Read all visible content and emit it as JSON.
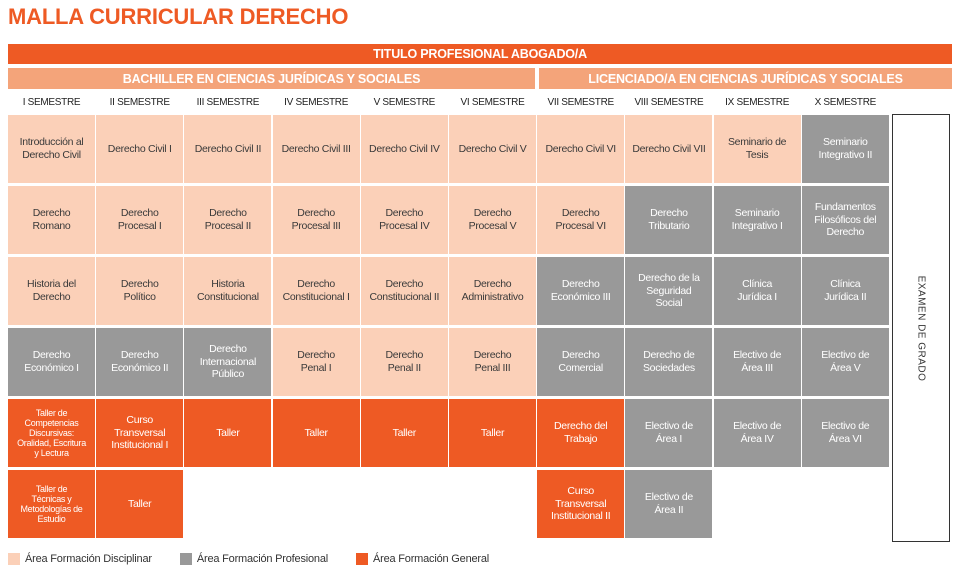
{
  "title": "MALLA CURRICULAR DERECHO",
  "degree_banner": "TITULO PROFESIONAL ABOGADO/A",
  "sub_banners": {
    "bachiller": "BACHILLER EN CIENCIAS JURÍDICAS Y SOCIALES",
    "licenciado": "LICENCIADO/A EN CIENCIAS JURÍDICAS Y SOCIALES"
  },
  "semesters": [
    "I SEMESTRE",
    "II SEMESTRE",
    "III SEMESTRE",
    "IV SEMESTRE",
    "V SEMESTRE",
    "VI SEMESTRE",
    "VII SEMESTRE",
    "VIII SEMESTRE",
    "IX SEMESTRE",
    "X SEMESTRE"
  ],
  "colors": {
    "disciplinar": "#fbd0b8",
    "profesional": "#999999",
    "general": "#ee5a24",
    "banner": "#ee5a24",
    "sub_banner": "#f4a47a"
  },
  "courses": [
    [
      {
        "name": "Introducción al\nDerecho Civil",
        "area": "disciplinar"
      },
      {
        "name": "Derecho\nRomano",
        "area": "disciplinar"
      },
      {
        "name": "Historia del\nDerecho",
        "area": "disciplinar"
      },
      {
        "name": "Derecho\nEconómico I",
        "area": "profesional"
      },
      {
        "name": "Taller de\nCompetencias\nDiscursivas:\nOralidad, Escritura\ny Lectura",
        "area": "general"
      },
      {
        "name": "Taller de\nTécnicas y\nMetodologías de\nEstudio",
        "area": "general"
      }
    ],
    [
      {
        "name": "Derecho Civil I",
        "area": "disciplinar"
      },
      {
        "name": "Derecho\nProcesal I",
        "area": "disciplinar"
      },
      {
        "name": "Derecho\nPolítico",
        "area": "disciplinar"
      },
      {
        "name": "Derecho\nEconómico II",
        "area": "profesional"
      },
      {
        "name": "Curso\nTransversal\nInstitucional I",
        "area": "general"
      },
      {
        "name": "Taller",
        "area": "general"
      }
    ],
    [
      {
        "name": "Derecho Civil II",
        "area": "disciplinar"
      },
      {
        "name": "Derecho\nProcesal II",
        "area": "disciplinar"
      },
      {
        "name": "Historia\nConstitucional",
        "area": "disciplinar"
      },
      {
        "name": "Derecho\nInternacional\nPúblico",
        "area": "profesional"
      },
      {
        "name": "Taller",
        "area": "general"
      }
    ],
    [
      {
        "name": "Derecho Civil III",
        "area": "disciplinar"
      },
      {
        "name": "Derecho\nProcesal III",
        "area": "disciplinar"
      },
      {
        "name": "Derecho\nConstitucional I",
        "area": "disciplinar"
      },
      {
        "name": "Derecho\nPenal I",
        "area": "disciplinar"
      },
      {
        "name": "Taller",
        "area": "general"
      }
    ],
    [
      {
        "name": "Derecho Civil IV",
        "area": "disciplinar"
      },
      {
        "name": "Derecho\nProcesal IV",
        "area": "disciplinar"
      },
      {
        "name": "Derecho\nConstitucional II",
        "area": "disciplinar"
      },
      {
        "name": "Derecho\nPenal II",
        "area": "disciplinar"
      },
      {
        "name": "Taller",
        "area": "general"
      }
    ],
    [
      {
        "name": "Derecho Civil V",
        "area": "disciplinar"
      },
      {
        "name": "Derecho\nProcesal V",
        "area": "disciplinar"
      },
      {
        "name": "Derecho\nAdministrativo",
        "area": "disciplinar"
      },
      {
        "name": "Derecho\nPenal III",
        "area": "disciplinar"
      },
      {
        "name": "Taller",
        "area": "general"
      }
    ],
    [
      {
        "name": "Derecho Civil VI",
        "area": "disciplinar"
      },
      {
        "name": "Derecho\nProcesal VI",
        "area": "disciplinar"
      },
      {
        "name": "Derecho\nEconómico III",
        "area": "profesional"
      },
      {
        "name": "Derecho\nComercial",
        "area": "profesional"
      },
      {
        "name": "Derecho del\nTrabajo",
        "area": "general"
      },
      {
        "name": "Curso\nTransversal\nInstitucional II",
        "area": "general"
      }
    ],
    [
      {
        "name": "Derecho Civil VII",
        "area": "disciplinar"
      },
      {
        "name": "Derecho\nTributario",
        "area": "profesional"
      },
      {
        "name": "Derecho de la\nSeguridad\nSocial",
        "area": "profesional"
      },
      {
        "name": "Derecho de\nSociedades",
        "area": "profesional"
      },
      {
        "name": "Electivo de\nÁrea I",
        "area": "profesional"
      },
      {
        "name": "Electivo de\nÁrea II",
        "area": "profesional"
      }
    ],
    [
      {
        "name": "Seminario de\nTesis",
        "area": "disciplinar"
      },
      {
        "name": "Seminario\nIntegrativo I",
        "area": "profesional"
      },
      {
        "name": "Clínica\nJurídica I",
        "area": "profesional"
      },
      {
        "name": "Electivo de\nÁrea III",
        "area": "profesional"
      },
      {
        "name": "Electivo de\nÁrea IV",
        "area": "profesional"
      }
    ],
    [
      {
        "name": "Seminario\nIntegrativo II",
        "area": "profesional"
      },
      {
        "name": "Fundamentos\nFilosóficos del\nDerecho",
        "area": "profesional"
      },
      {
        "name": "Clínica\nJurídica II",
        "area": "profesional"
      },
      {
        "name": "Electivo de\nÁrea V",
        "area": "profesional"
      },
      {
        "name": "Electivo de\nÁrea VI",
        "area": "profesional"
      }
    ]
  ],
  "exam_label": "EXAMEN DE GRADO",
  "legend": [
    {
      "label": "Área Formación Disciplinar",
      "area": "disciplinar"
    },
    {
      "label": "Área Formación Profesional",
      "area": "profesional"
    },
    {
      "label": "Área Formación General",
      "area": "general"
    }
  ]
}
